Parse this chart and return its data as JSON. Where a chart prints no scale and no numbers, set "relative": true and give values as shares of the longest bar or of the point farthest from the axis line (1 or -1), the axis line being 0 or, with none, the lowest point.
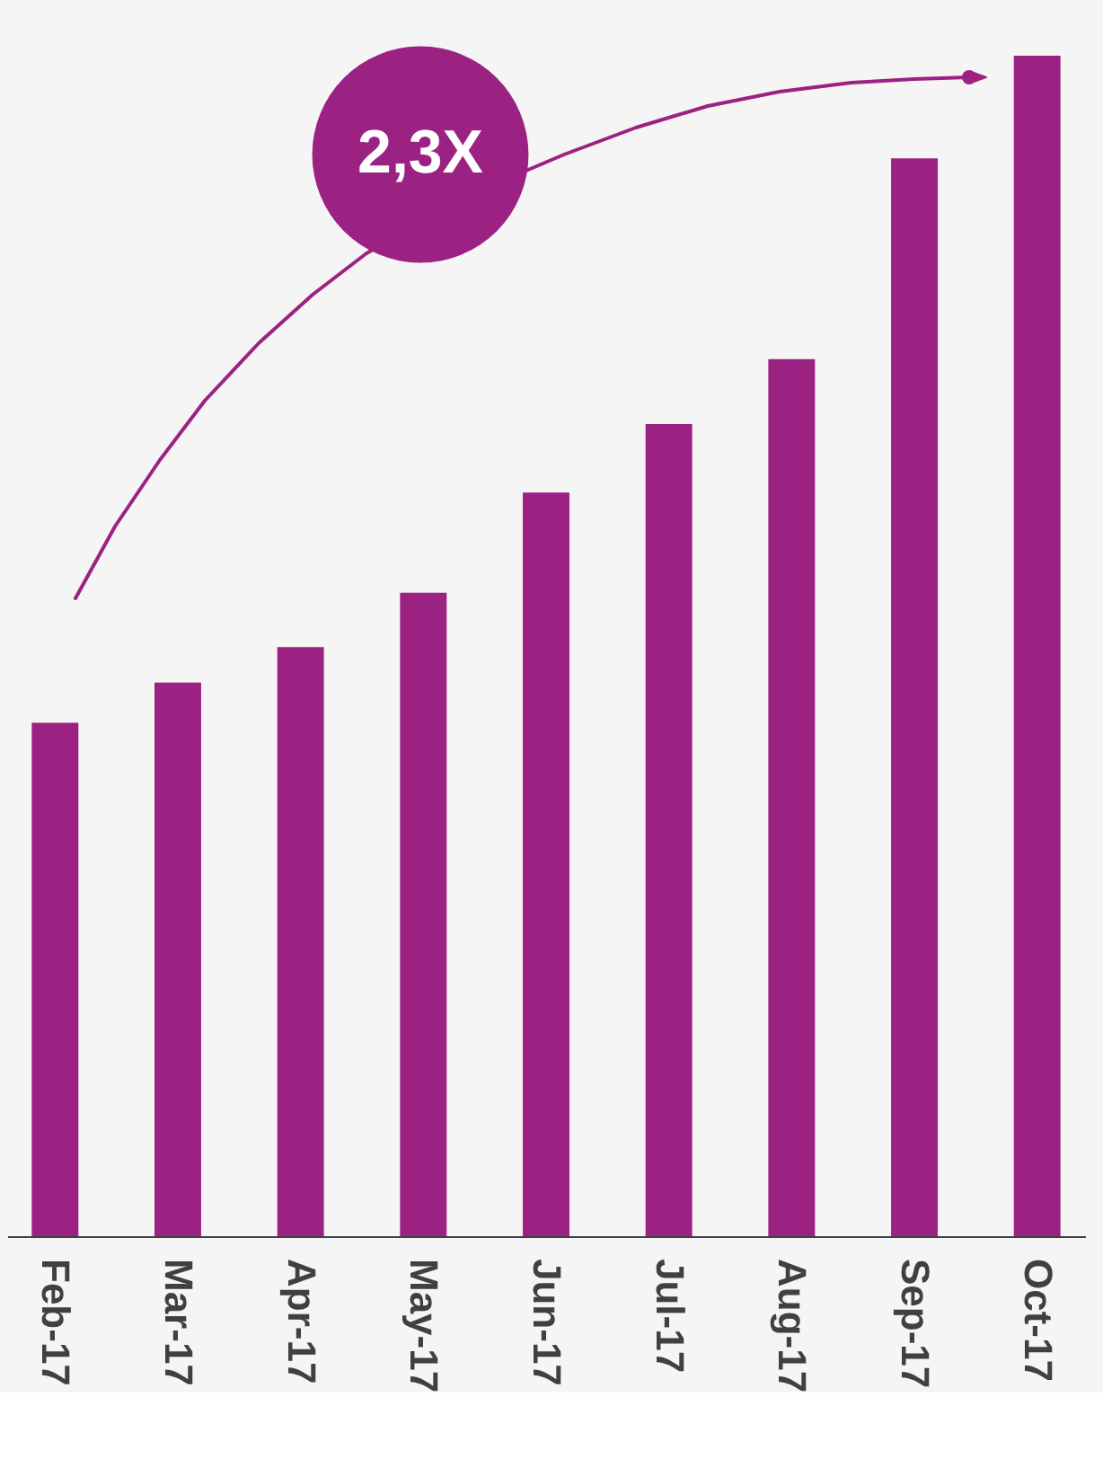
{
  "chart_data": {
    "type": "bar",
    "relative": true,
    "categories": [
      "Feb-17",
      "Mar-17",
      "Apr-17",
      "May-17",
      "Jun-17",
      "Jul-17",
      "Aug-17",
      "Sep-17",
      "Oct-17"
    ],
    "values": [
      0.435,
      0.469,
      0.499,
      0.545,
      0.63,
      0.688,
      0.743,
      0.913,
      1
    ],
    "color": "#9b2282",
    "annotations": [
      "2,3X"
    ],
    "grid": false,
    "legend": false
  }
}
